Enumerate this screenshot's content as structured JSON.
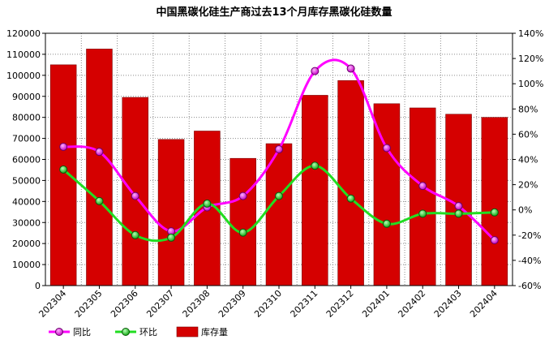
{
  "chart_data": {
    "type": "bar",
    "title": "中国黑碳化硅生产商过去13个月库存黑碳化硅数量",
    "categories": [
      "202304",
      "202305",
      "202306",
      "202307",
      "202308",
      "202309",
      "202310",
      "202311",
      "202312",
      "202401",
      "202402",
      "202403",
      "202404"
    ],
    "left_axis": {
      "ylim": [
        0,
        120000
      ],
      "ticks": [
        "0",
        "10000",
        "20000",
        "30000",
        "40000",
        "50000",
        "60000",
        "70000",
        "80000",
        "90000",
        "100000",
        "110000",
        "120000"
      ]
    },
    "right_axis": {
      "ylim": [
        -60,
        140
      ],
      "unit": "%",
      "ticks": [
        "-60%",
        "-40%",
        "-20%",
        "0%",
        "20%",
        "40%",
        "60%",
        "80%",
        "100%",
        "120%",
        "140%"
      ]
    },
    "series": [
      {
        "name": "库存量",
        "kind": "bar",
        "axis": "left",
        "color": "#d50000",
        "values": [
          105000,
          112500,
          89500,
          69500,
          73500,
          60500,
          67500,
          90500,
          97500,
          86500,
          84500,
          81500,
          80000
        ]
      },
      {
        "name": "同比",
        "kind": "line",
        "axis": "right",
        "color": "#ff00ff",
        "values": [
          50,
          46,
          11,
          -17,
          2,
          11,
          48,
          110,
          112,
          49,
          19,
          3,
          -24
        ]
      },
      {
        "name": "环比",
        "kind": "line",
        "axis": "right",
        "color": "#22dd22",
        "values": [
          32,
          7,
          -20,
          -22,
          5,
          -18,
          11,
          35,
          9,
          -11,
          -3,
          -3,
          -2
        ]
      }
    ],
    "legend": {
      "position": "bottom",
      "items": [
        "同比",
        "环比",
        "库存量"
      ]
    },
    "grid": true
  }
}
